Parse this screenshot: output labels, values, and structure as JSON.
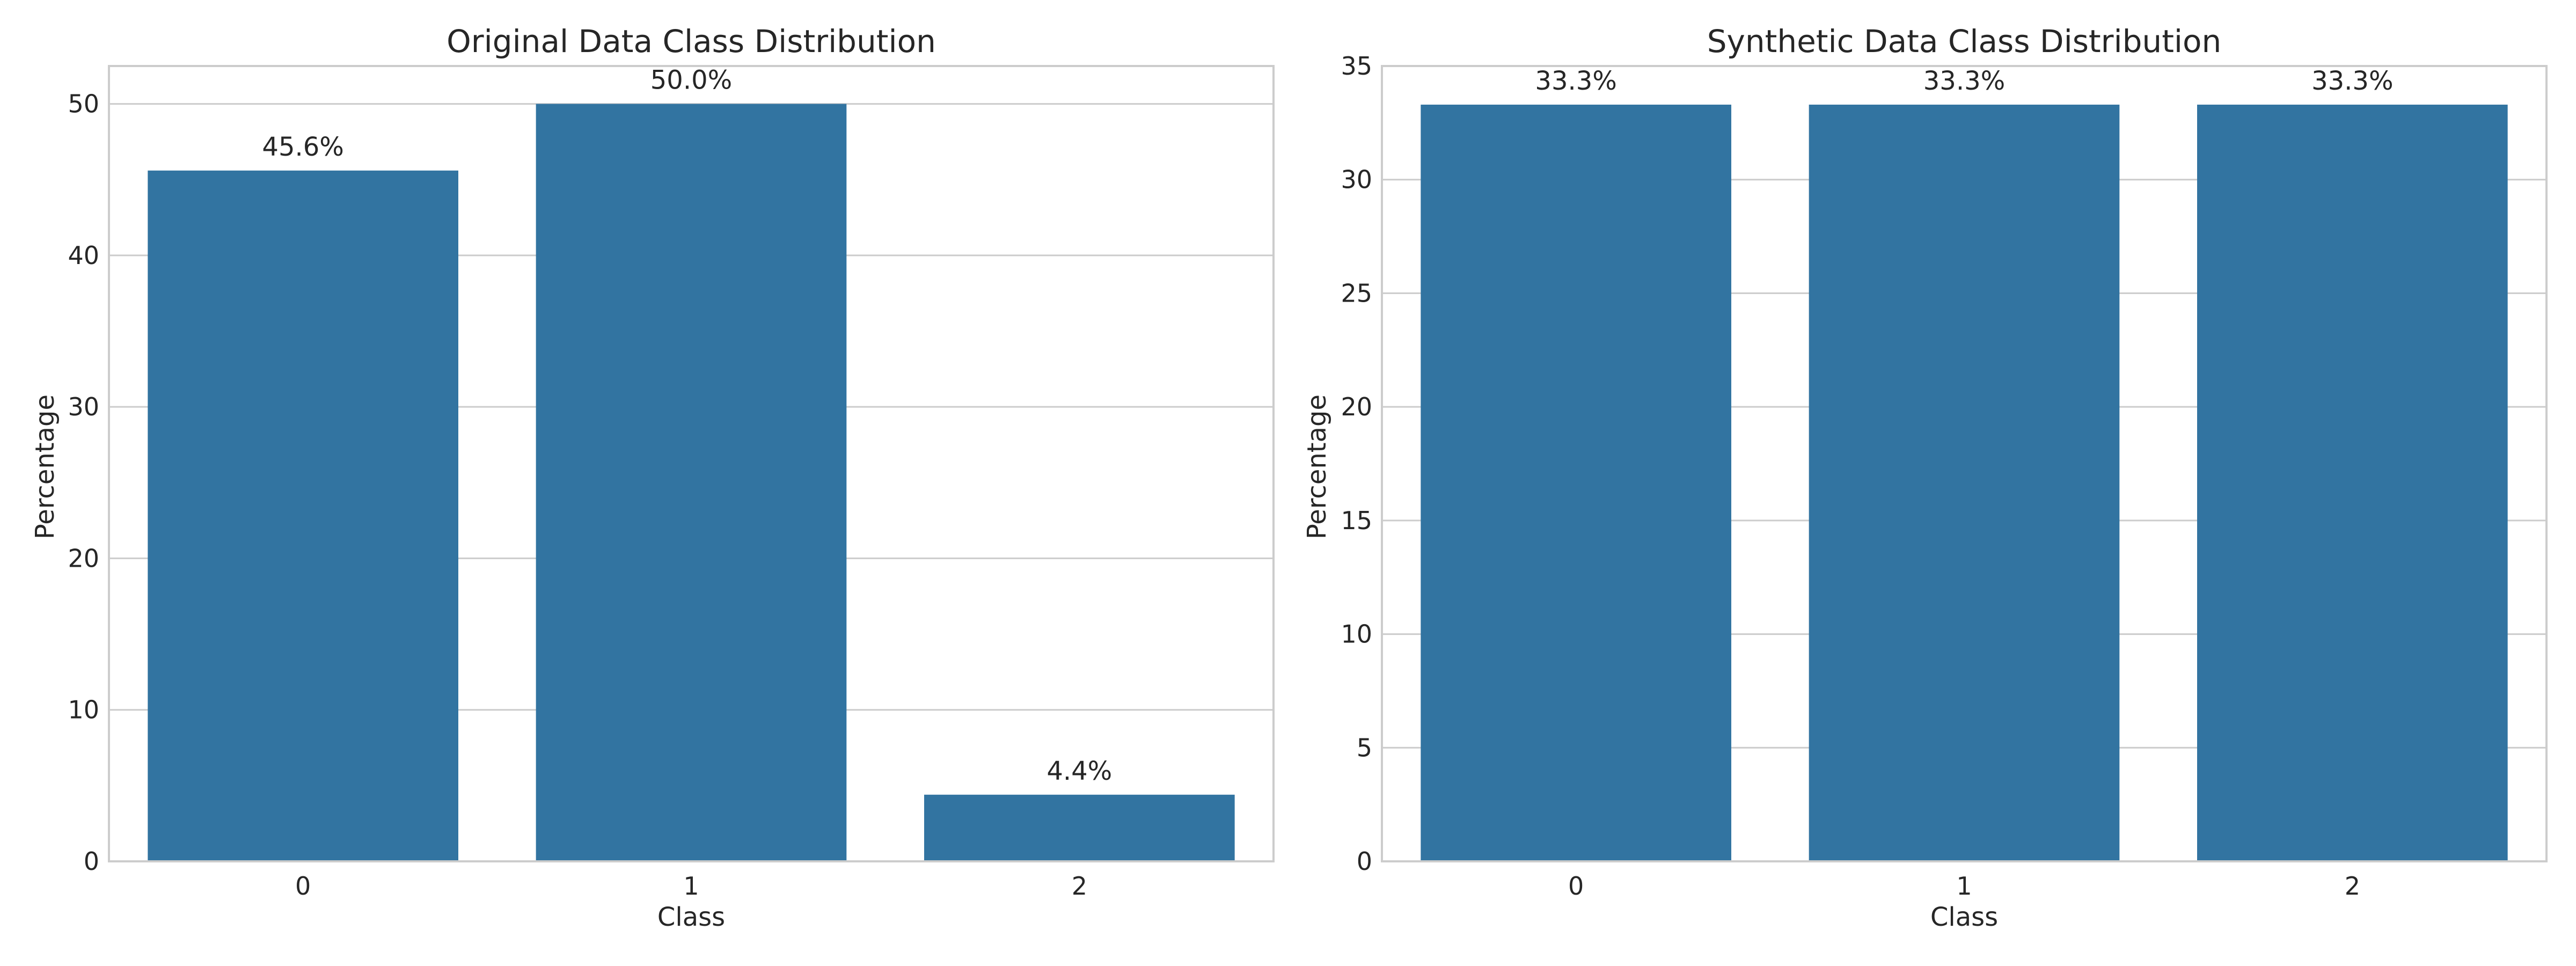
{
  "chart_data": [
    {
      "type": "bar",
      "title": "Original Data Class Distribution",
      "xlabel": "Class",
      "ylabel": "Percentage",
      "categories": [
        "0",
        "1",
        "2"
      ],
      "values": [
        45.6,
        50.0,
        4.4
      ],
      "value_labels": [
        "45.6%",
        "50.0%",
        "4.4%"
      ],
      "ylim": [
        0,
        52.5
      ],
      "yticks": [
        0,
        10,
        20,
        30,
        40,
        50
      ],
      "grid": "y",
      "legend": "none",
      "bar_color": "#3274a1"
    },
    {
      "type": "bar",
      "title": "Synthetic Data Class Distribution",
      "xlabel": "Class",
      "ylabel": "Percentage",
      "categories": [
        "0",
        "1",
        "2"
      ],
      "values": [
        33.3,
        33.3,
        33.3
      ],
      "value_labels": [
        "33.3%",
        "33.3%",
        "33.3%"
      ],
      "ylim": [
        0,
        35
      ],
      "yticks": [
        0,
        5,
        10,
        15,
        20,
        25,
        30,
        35
      ],
      "grid": "y",
      "legend": "none",
      "bar_color": "#3274a1"
    }
  ]
}
